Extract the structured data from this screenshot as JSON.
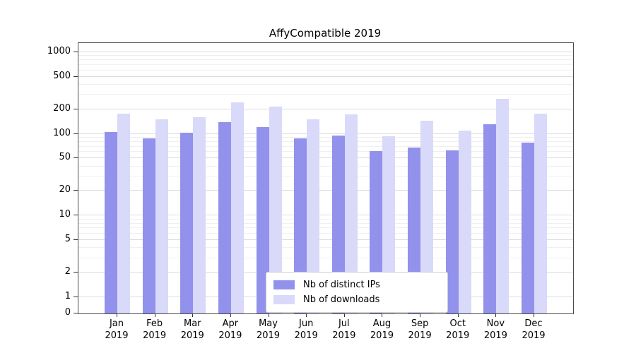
{
  "chart_data": {
    "type": "bar",
    "title": "AffyCompatible 2019",
    "categories": [
      "Jan",
      "Feb",
      "Mar",
      "Apr",
      "May",
      "Jun",
      "Jul",
      "Aug",
      "Sep",
      "Oct",
      "Nov",
      "Dec"
    ],
    "year": "2019",
    "series": [
      {
        "name": "Nb of distinct IPs",
        "color": "#9292ec",
        "values": [
          105,
          88,
          103,
          140,
          120,
          88,
          95,
          62,
          68,
          63,
          130,
          78
        ]
      },
      {
        "name": "Nb of downloads",
        "color": "#d9d9f9",
        "values": [
          175,
          150,
          160,
          245,
          215,
          150,
          172,
          93,
          145,
          110,
          270,
          175
        ]
      }
    ],
    "yscale": "log",
    "yticks": [
      0,
      1,
      2,
      5,
      10,
      20,
      50,
      100,
      200,
      500,
      1000
    ],
    "ylim": [
      0,
      1000
    ],
    "grid": true,
    "legend_position": "bottom-center"
  }
}
